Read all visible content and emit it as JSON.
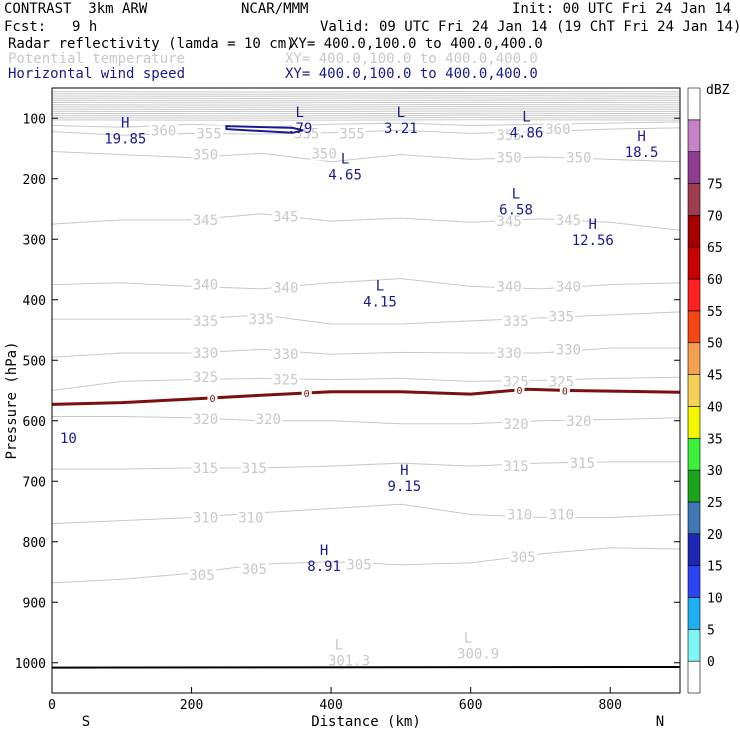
{
  "header": {
    "model": "CONTRAST  3km ARW",
    "center": "NCAR/MMM",
    "init": "Init: 00 UTC Fri 24 Jan 14",
    "fcst_label": "Fcst:",
    "fcst_value": "9 h",
    "valid": "Valid: 09 UTC Fri 24 Jan 14 (19 ChT Fri 24 Jan 14)",
    "fields": [
      {
        "name": "Radar reflectivity (lamda = 10 cm)",
        "xy": "XY= 400.0,100.0 to 400.0,400.0",
        "color": "#000000"
      },
      {
        "name": "Potential temperature",
        "xy": "XY= 400.0,100.0 to 400.0,400.0",
        "color": "#c8c8c8"
      },
      {
        "name": "Horizontal wind speed",
        "xy": "XY= 400.0,100.0 to 400.0,400.0",
        "color": "#1a1a8c"
      }
    ]
  },
  "chart_data": {
    "type": "contour-cross-section",
    "xlabel": "Distance (km)",
    "ylabel": "Pressure (hPa)",
    "xlim": [
      0,
      900
    ],
    "ylim": [
      50,
      1050
    ],
    "x_ticks": [
      "0",
      "200",
      "400",
      "600",
      "800"
    ],
    "y_ticks": [
      "100",
      "200",
      "300",
      "400",
      "500",
      "600",
      "700",
      "800",
      "900",
      "1000"
    ],
    "ends": {
      "left": "S",
      "right": "N"
    },
    "theta_levels": [
      300,
      305,
      310,
      315,
      320,
      325,
      330,
      335,
      340,
      345,
      350,
      355,
      360
    ],
    "theta_lines": [
      {
        "level": 360,
        "x": [
          0,
          100,
          200,
          300,
          400,
          500,
          600,
          700,
          800,
          900
        ],
        "p": [
          112,
          115,
          110,
          115,
          110,
          108,
          112,
          110,
          108,
          106
        ]
      },
      {
        "level": 355,
        "x": [
          0,
          100,
          200,
          300,
          400,
          500,
          600,
          700,
          800,
          900
        ],
        "p": [
          122,
          128,
          125,
          126,
          124,
          120,
          125,
          122,
          118,
          116
        ]
      },
      {
        "level": 350,
        "x": [
          0,
          100,
          200,
          300,
          400,
          500,
          600,
          700,
          800,
          900
        ],
        "p": [
          155,
          160,
          165,
          158,
          172,
          160,
          168,
          164,
          168,
          172
        ]
      },
      {
        "level": 345,
        "x": [
          0,
          100,
          200,
          300,
          400,
          500,
          600,
          700,
          800,
          900
        ],
        "p": [
          275,
          268,
          268,
          258,
          270,
          265,
          272,
          266,
          272,
          285
        ]
      },
      {
        "level": 340,
        "x": [
          0,
          100,
          200,
          300,
          400,
          500,
          600,
          700,
          800,
          900
        ],
        "p": [
          375,
          372,
          378,
          382,
          372,
          365,
          378,
          382,
          375,
          372
        ]
      },
      {
        "level": 335,
        "x": [
          0,
          100,
          200,
          300,
          400,
          500,
          600,
          700,
          800,
          900
        ],
        "p": [
          432,
          432,
          432,
          425,
          440,
          440,
          435,
          430,
          425,
          420
        ]
      },
      {
        "level": 330,
        "x": [
          0,
          100,
          200,
          300,
          400,
          500,
          600,
          700,
          800,
          900
        ],
        "p": [
          495,
          488,
          488,
          482,
          490,
          487,
          488,
          488,
          480,
          480
        ]
      },
      {
        "level": 325,
        "x": [
          0,
          100,
          200,
          300,
          400,
          500,
          600,
          700,
          800,
          900
        ],
        "p": [
          550,
          535,
          532,
          530,
          532,
          530,
          535,
          533,
          530,
          528
        ]
      },
      {
        "level": 320,
        "x": [
          0,
          100,
          200,
          300,
          400,
          500,
          600,
          700,
          800,
          900
        ],
        "p": [
          593,
          593,
          595,
          600,
          600,
          605,
          605,
          600,
          598,
          595
        ]
      },
      {
        "level": 315,
        "x": [
          0,
          100,
          200,
          300,
          400,
          500,
          600,
          700,
          800,
          900
        ],
        "p": [
          680,
          680,
          678,
          678,
          675,
          670,
          675,
          670,
          668,
          668
        ]
      },
      {
        "level": 310,
        "x": [
          0,
          100,
          200,
          300,
          400,
          500,
          600,
          700,
          800,
          900
        ],
        "p": [
          770,
          765,
          760,
          752,
          745,
          738,
          755,
          760,
          760,
          755
        ]
      },
      {
        "level": 305,
        "x": [
          0,
          100,
          200,
          300,
          400,
          500,
          600,
          700,
          800,
          900
        ],
        "p": [
          868,
          862,
          852,
          837,
          833,
          838,
          835,
          820,
          810,
          812
        ]
      }
    ],
    "theta_labels": [
      {
        "text": "360",
        "x": 160,
        "p": 120
      },
      {
        "text": "355",
        "x": 225,
        "p": 125
      },
      {
        "text": "355",
        "x": 365,
        "p": 125
      },
      {
        "text": "355",
        "x": 430,
        "p": 125
      },
      {
        "text": "355",
        "x": 655,
        "p": 128
      },
      {
        "text": "360",
        "x": 725,
        "p": 118
      },
      {
        "text": "350",
        "x": 220,
        "p": 160
      },
      {
        "text": "350",
        "x": 390,
        "p": 158
      },
      {
        "text": "350",
        "x": 655,
        "p": 165
      },
      {
        "text": "350",
        "x": 755,
        "p": 165
      },
      {
        "text": "345",
        "x": 220,
        "p": 268
      },
      {
        "text": "345",
        "x": 335,
        "p": 262
      },
      {
        "text": "345",
        "x": 655,
        "p": 270
      },
      {
        "text": "345",
        "x": 740,
        "p": 268
      },
      {
        "text": "340",
        "x": 220,
        "p": 375
      },
      {
        "text": "340",
        "x": 335,
        "p": 380
      },
      {
        "text": "340",
        "x": 655,
        "p": 378
      },
      {
        "text": "340",
        "x": 740,
        "p": 378
      },
      {
        "text": "335",
        "x": 220,
        "p": 435
      },
      {
        "text": "335",
        "x": 300,
        "p": 432
      },
      {
        "text": "335",
        "x": 665,
        "p": 435
      },
      {
        "text": "335",
        "x": 730,
        "p": 428
      },
      {
        "text": "330",
        "x": 220,
        "p": 488
      },
      {
        "text": "330",
        "x": 335,
        "p": 490
      },
      {
        "text": "330",
        "x": 655,
        "p": 488
      },
      {
        "text": "330",
        "x": 740,
        "p": 482
      },
      {
        "text": "325",
        "x": 220,
        "p": 528
      },
      {
        "text": "325",
        "x": 335,
        "p": 532
      },
      {
        "text": "325",
        "x": 665,
        "p": 535
      },
      {
        "text": "325",
        "x": 730,
        "p": 535
      },
      {
        "text": "320",
        "x": 220,
        "p": 597
      },
      {
        "text": "320",
        "x": 310,
        "p": 597
      },
      {
        "text": "320",
        "x": 665,
        "p": 605
      },
      {
        "text": "320",
        "x": 755,
        "p": 600
      },
      {
        "text": "315",
        "x": 220,
        "p": 678
      },
      {
        "text": "315",
        "x": 290,
        "p": 678
      },
      {
        "text": "315",
        "x": 665,
        "p": 675
      },
      {
        "text": "315",
        "x": 760,
        "p": 670
      },
      {
        "text": "310",
        "x": 220,
        "p": 760
      },
      {
        "text": "310",
        "x": 285,
        "p": 760
      },
      {
        "text": "310",
        "x": 670,
        "p": 755
      },
      {
        "text": "310",
        "x": 730,
        "p": 755
      },
      {
        "text": "305",
        "x": 215,
        "p": 855
      },
      {
        "text": "305",
        "x": 290,
        "p": 845
      },
      {
        "text": "305",
        "x": 440,
        "p": 838
      },
      {
        "text": "305",
        "x": 675,
        "p": 825
      }
    ],
    "theta_extrema": [
      {
        "type": "L",
        "value": "301.3",
        "x": 440,
        "p": 995,
        "color": "#c8c8c8"
      },
      {
        "type": "L",
        "value": "300.9",
        "x": 625,
        "p": 983,
        "color": "#c8c8c8"
      }
    ],
    "wind_extrema": [
      {
        "type": "H",
        "value": "19.85",
        "x": 105,
        "p": 115
      },
      {
        "type": "L",
        "value": ".79",
        "x": 355,
        "p": 98
      },
      {
        "type": "L",
        "value": "3.21",
        "x": 500,
        "p": 98
      },
      {
        "type": "L",
        "value": "4.86",
        "x": 680,
        "p": 105
      },
      {
        "type": "H",
        "value": "18.5",
        "x": 845,
        "p": 138
      },
      {
        "type": "L",
        "value": "4.65",
        "x": 420,
        "p": 175
      },
      {
        "type": "L",
        "value": "6.58",
        "x": 665,
        "p": 233
      },
      {
        "type": "H",
        "value": "12.56",
        "x": 775,
        "p": 283
      },
      {
        "type": "L",
        "value": "4.15",
        "x": 470,
        "p": 385
      },
      {
        "type": "H",
        "value": "9.15",
        "x": 505,
        "p": 690
      },
      {
        "type": "H",
        "value": "8.91",
        "x": 390,
        "p": 822
      }
    ],
    "wind_contour_labels": [
      {
        "text": "10",
        "x": 12,
        "p": 620
      }
    ],
    "wind_jet_segment": {
      "x": [
        250,
        345,
        360,
        345,
        250
      ],
      "p": [
        113,
        116,
        120,
        124,
        118
      ]
    },
    "freezing_line": {
      "level": "0",
      "x": [
        0,
        100,
        200,
        300,
        400,
        500,
        600,
        680,
        740,
        800,
        900
      ],
      "p": [
        573,
        570,
        564,
        558,
        552,
        552,
        556,
        548,
        550,
        551,
        553
      ],
      "labels_x": [
        230,
        365,
        670,
        735
      ]
    },
    "surface_line": {
      "x": [
        0,
        900
      ],
      "p": [
        1008,
        1007
      ]
    },
    "colorbar": {
      "title": "dBZ",
      "levels": [
        "0",
        "5",
        "10",
        "15",
        "20",
        "25",
        "30",
        "35",
        "40",
        "45",
        "50",
        "55",
        "60",
        "65",
        "70",
        "75"
      ],
      "colors": [
        "#ffffff",
        "#7ff5f5",
        "#1eaff0",
        "#2b45f5",
        "#1e28b4",
        "#3f78b4",
        "#1aa51a",
        "#3cf03c",
        "#f5f500",
        "#f5d255",
        "#f5a050",
        "#f54614",
        "#ff2020",
        "#c80000",
        "#a50000",
        "#a03c50",
        "#913c91",
        "#c882c8",
        "#ffffff"
      ]
    }
  }
}
